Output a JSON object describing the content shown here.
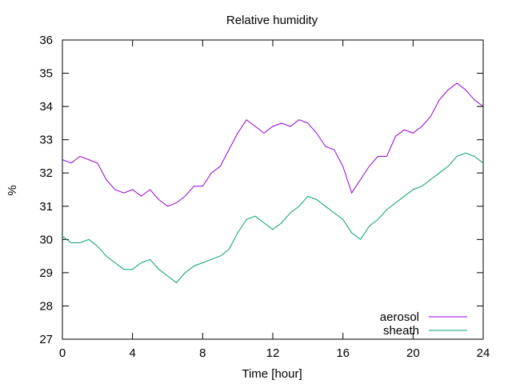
{
  "chart_data": {
    "type": "line",
    "title": "Relative humidity",
    "xlabel": "Time [hour]",
    "ylabel": "%",
    "xlim": [
      0,
      24
    ],
    "ylim": [
      27,
      36
    ],
    "xticks": [
      0,
      4,
      8,
      12,
      16,
      20,
      24
    ],
    "yticks": [
      27,
      28,
      29,
      30,
      31,
      32,
      33,
      34,
      35,
      36
    ],
    "legend_position": "bottom-right",
    "grid": false,
    "series": [
      {
        "name": "aerosol",
        "color": "#9400d3",
        "x": [
          0,
          0.5,
          1,
          1.5,
          2,
          2.5,
          3,
          3.5,
          4,
          4.5,
          5,
          5.5,
          6,
          6.5,
          7,
          7.5,
          8,
          8.5,
          9,
          9.5,
          10,
          10.5,
          11,
          11.5,
          12,
          12.5,
          13,
          13.5,
          14,
          14.5,
          15,
          15.5,
          16,
          16.5,
          17,
          17.5,
          18,
          18.5,
          19,
          19.5,
          20,
          20.5,
          21,
          21.5,
          22,
          22.5,
          23,
          23.5,
          24
        ],
        "y": [
          32.4,
          32.3,
          32.5,
          32.4,
          32.3,
          31.8,
          31.5,
          31.4,
          31.5,
          31.3,
          31.5,
          31.2,
          31.0,
          31.1,
          31.3,
          31.6,
          31.6,
          32.0,
          32.2,
          32.7,
          33.2,
          33.6,
          33.4,
          33.2,
          33.4,
          33.5,
          33.4,
          33.6,
          33.5,
          33.2,
          32.8,
          32.7,
          32.2,
          31.4,
          31.8,
          32.2,
          32.5,
          32.5,
          33.1,
          33.3,
          33.2,
          33.4,
          33.7,
          34.2,
          34.5,
          34.7,
          34.5,
          34.2,
          34.0
        ]
      },
      {
        "name": "sheath",
        "color": "#009e73",
        "x": [
          0,
          0.5,
          1,
          1.5,
          2,
          2.5,
          3,
          3.5,
          4,
          4.5,
          5,
          5.5,
          6,
          6.5,
          7,
          7.5,
          8,
          8.5,
          9,
          9.5,
          10,
          10.5,
          11,
          11.5,
          12,
          12.5,
          13,
          13.5,
          14,
          14.5,
          15,
          15.5,
          16,
          16.5,
          17,
          17.5,
          18,
          18.5,
          19,
          19.5,
          20,
          20.5,
          21,
          21.5,
          22,
          22.5,
          23,
          23.5,
          24
        ],
        "y": [
          30.1,
          29.9,
          29.9,
          30.0,
          29.8,
          29.5,
          29.3,
          29.1,
          29.1,
          29.3,
          29.4,
          29.1,
          28.9,
          28.7,
          29.0,
          29.2,
          29.3,
          29.4,
          29.5,
          29.7,
          30.2,
          30.6,
          30.7,
          30.5,
          30.3,
          30.5,
          30.8,
          31.0,
          31.3,
          31.2,
          31.0,
          30.8,
          30.6,
          30.2,
          30.0,
          30.4,
          30.6,
          30.9,
          31.1,
          31.3,
          31.5,
          31.6,
          31.8,
          32.0,
          32.2,
          32.5,
          32.6,
          32.5,
          32.3
        ]
      }
    ]
  }
}
